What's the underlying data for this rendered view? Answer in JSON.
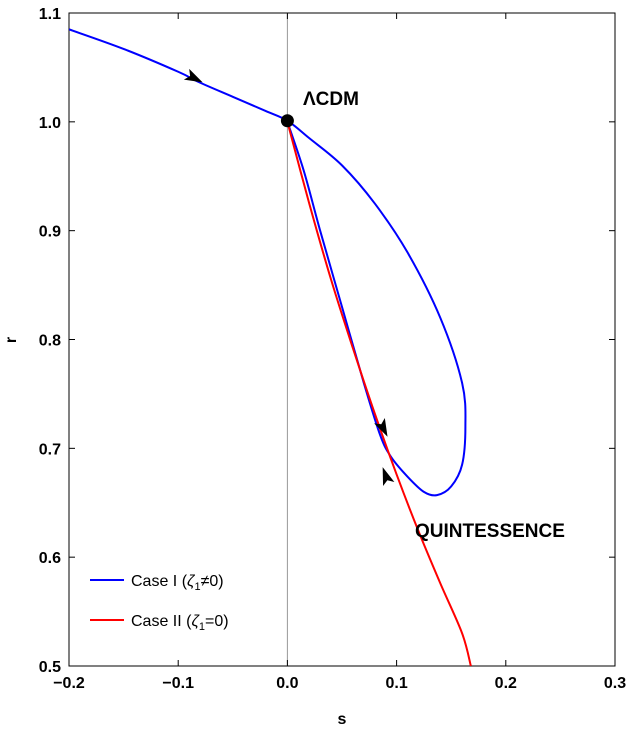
{
  "chart_data": {
    "type": "line",
    "title": "",
    "xlabel": "s",
    "ylabel": "r",
    "xlim": [
      -0.2,
      0.3
    ],
    "ylim": [
      0.5,
      1.1
    ],
    "x_ticks": [
      "−0.2",
      "−0.1",
      "0.0",
      "0.1",
      "0.2",
      "0.3"
    ],
    "x_tick_values": [
      -0.2,
      -0.1,
      0.0,
      0.1,
      0.2,
      0.3
    ],
    "y_ticks": [
      "0.5",
      "0.6",
      "0.7",
      "0.8",
      "0.9",
      "1.0",
      "1.1"
    ],
    "y_tick_values": [
      0.5,
      0.6,
      0.7,
      0.8,
      0.9,
      1.0,
      1.1
    ],
    "grid": false,
    "vertical_reference_line_x": 0.0,
    "legend_position": "bottom-left",
    "series": [
      {
        "name": "Case I (ζ₁≠0)",
        "legend_prefix": "Case I (",
        "legend_zeta": "ζ",
        "legend_sub": "1",
        "legend_suffix": "≠0)",
        "color": "#0000ff",
        "x": [
          -0.2,
          -0.15,
          -0.1,
          -0.08,
          -0.05,
          -0.02,
          0.0,
          0.02,
          0.05,
          0.08,
          0.11,
          0.14,
          0.16,
          0.163,
          0.16,
          0.15,
          0.137,
          0.125,
          0.11,
          0.095,
          0.085,
          0.07,
          0.05,
          0.03,
          0.015,
          0.0
        ],
        "y": [
          1.085,
          1.067,
          1.046,
          1.036,
          1.023,
          1.01,
          1.001,
          0.985,
          0.96,
          0.925,
          0.88,
          0.82,
          0.76,
          0.72,
          0.685,
          0.665,
          0.657,
          0.66,
          0.674,
          0.692,
          0.712,
          0.76,
          0.83,
          0.9,
          0.955,
          1.0
        ],
        "arrows": [
          {
            "x": -0.085,
            "y": 1.04,
            "direction": "forward"
          },
          {
            "x": 0.088,
            "y": 0.718,
            "direction": "backward"
          }
        ]
      },
      {
        "name": "Case II (ζ₁=0)",
        "legend_prefix": "Case II (",
        "legend_zeta": "ζ",
        "legend_sub": "1",
        "legend_suffix": "=0)",
        "color": "#ff0000",
        "x": [
          0.0,
          0.02,
          0.04,
          0.06,
          0.08,
          0.1,
          0.12,
          0.14,
          0.16,
          0.168
        ],
        "y": [
          1.0,
          0.925,
          0.855,
          0.792,
          0.732,
          0.676,
          0.624,
          0.576,
          0.53,
          0.5
        ],
        "arrows": [
          {
            "x": 0.09,
            "y": 0.675,
            "direction": "backward"
          }
        ]
      }
    ],
    "point": {
      "x": 0.0,
      "y": 1.001,
      "label": "ΛCDM"
    },
    "annotations": [
      {
        "text": "QUINTESSENCE",
        "x": 0.118,
        "y": 0.622
      }
    ]
  }
}
